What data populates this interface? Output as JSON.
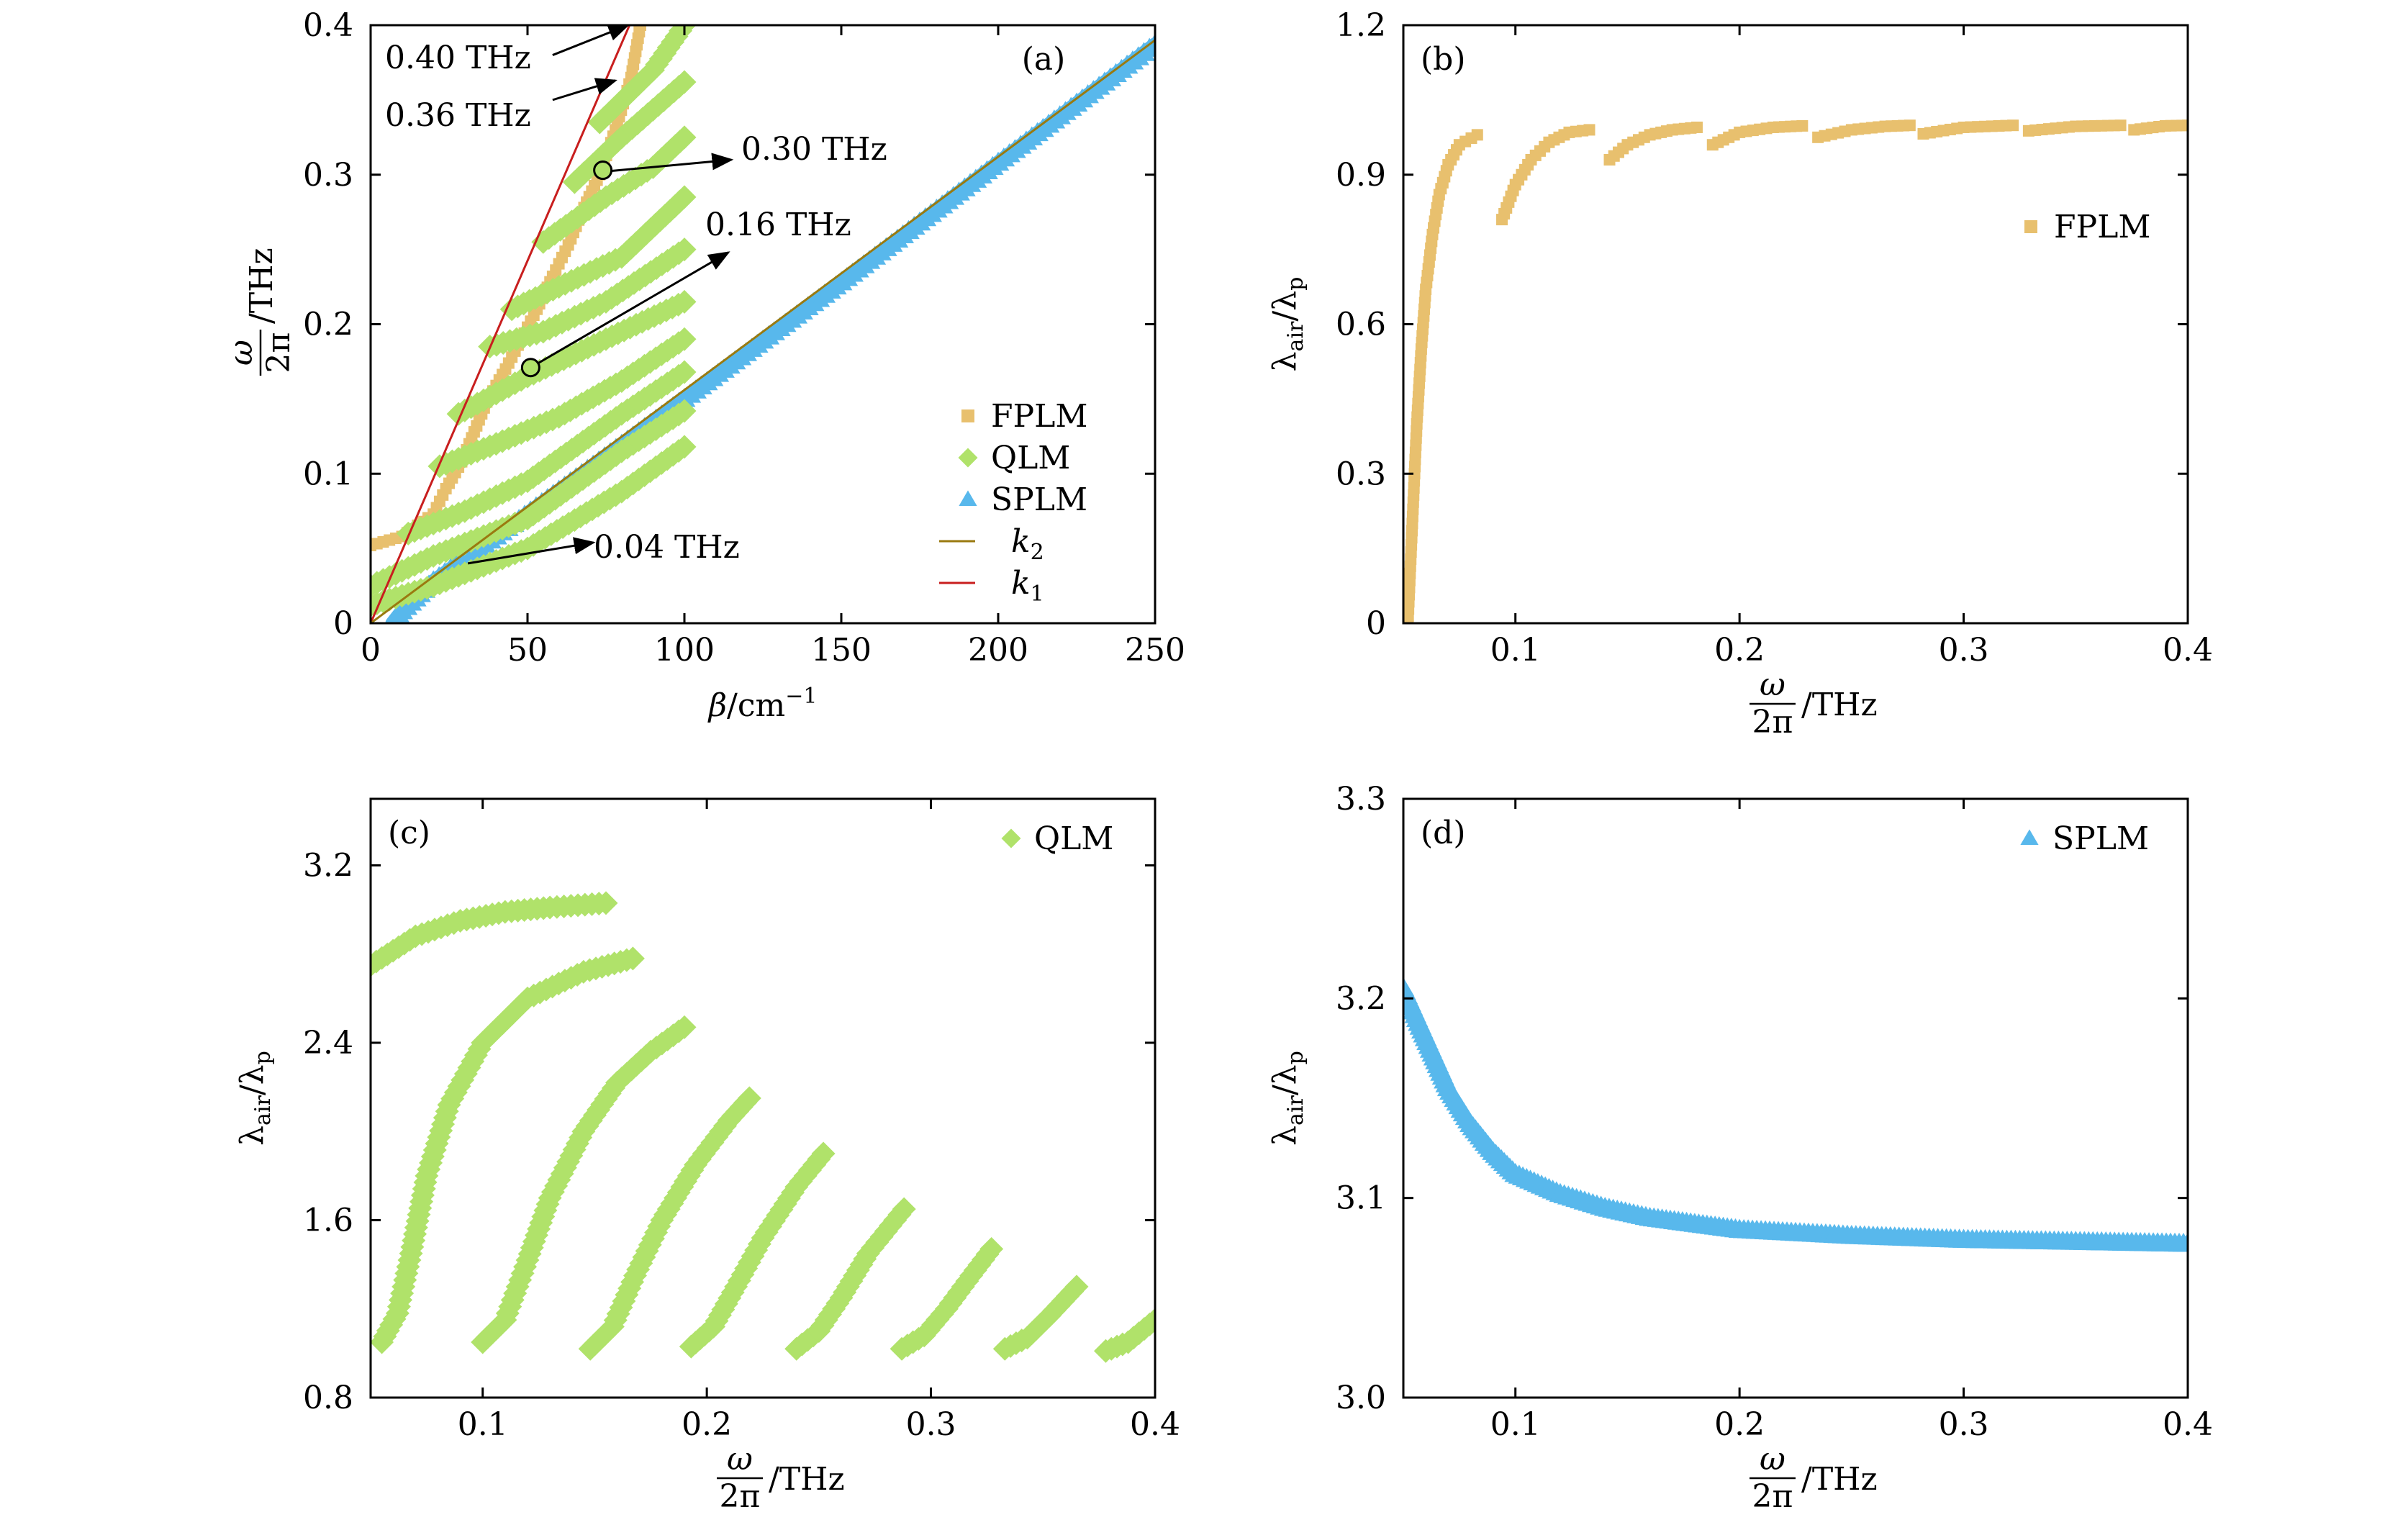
{
  "colors": {
    "fplm": "#E8C06E",
    "qlm": "#B0E26A",
    "splm": "#58B8EC",
    "k1": "#C81E1E",
    "k2": "#9A7A10",
    "marker_fill": "#B0E26A"
  },
  "chart_data": [
    {
      "panel": "(a)",
      "type": "scatter",
      "xlabel": "β/cm⁻¹",
      "ylabel": "ω/2π /THz",
      "xlabel_parts": {
        "beta": "β",
        "unit": "/cm",
        "exp": "−1"
      },
      "ylabel_parts": {
        "num": "ω",
        "den": "2π",
        "unit": "/THz"
      },
      "xlim": [
        0,
        250
      ],
      "ylim": [
        0,
        0.4
      ],
      "xticks": [
        0,
        50,
        100,
        150,
        200,
        250
      ],
      "xtick_labels": [
        "0",
        "50",
        "100",
        "150",
        "200",
        "250"
      ],
      "yticks": [
        0,
        0.1,
        0.2,
        0.3,
        0.4
      ],
      "ytick_labels": [
        "0",
        "0.1",
        "0.2",
        "0.3",
        "0.4"
      ],
      "legend": {
        "position": "right",
        "entries": [
          {
            "name": "FPLM",
            "marker": "square"
          },
          {
            "name": "QLM",
            "marker": "diamond"
          },
          {
            "name": "SPLM",
            "marker": "triangle"
          },
          {
            "name": "k",
            "sub": "2",
            "marker": "line"
          },
          {
            "name": "k",
            "sub": "1",
            "marker": "line"
          }
        ]
      },
      "lines": [
        {
          "name": "k1",
          "points": [
            [
              0,
              0
            ],
            [
              82.5,
              0.4
            ]
          ]
        },
        {
          "name": "k2",
          "points": [
            [
              0,
              0
            ],
            [
              250,
              0.39
            ]
          ]
        }
      ],
      "series": [
        {
          "name": "SPLM",
          "points": [
            [
              7,
              0
            ],
            [
              10,
              0.008
            ],
            [
              20,
              0.028
            ],
            [
              40,
              0.058
            ],
            [
              100,
              0.15
            ],
            [
              150,
              0.228
            ],
            [
              200,
              0.308
            ],
            [
              250,
              0.387
            ]
          ]
        },
        {
          "name": "FPLM",
          "points": [
            [
              0,
              0.052
            ],
            [
              10,
              0.058
            ],
            [
              20,
              0.073
            ],
            [
              24,
              0.09
            ],
            [
              29,
              0.108
            ],
            [
              33,
              0.128
            ],
            [
              37,
              0.148
            ],
            [
              43,
              0.17
            ],
            [
              48,
              0.19
            ],
            [
              53,
              0.21
            ],
            [
              58,
              0.232
            ],
            [
              63,
              0.253
            ],
            [
              68,
              0.278
            ],
            [
              73,
              0.3
            ],
            [
              78,
              0.33
            ],
            [
              83,
              0.365
            ],
            [
              86,
              0.4
            ]
          ]
        },
        {
          "name": "QLM-1",
          "points": [
            [
              0,
              0.012
            ],
            [
              20,
              0.025
            ],
            [
              50,
              0.05
            ],
            [
              80,
              0.088
            ],
            [
              100,
              0.118
            ]
          ]
        },
        {
          "name": "QLM-2",
          "points": [
            [
              0,
              0.025
            ],
            [
              20,
              0.045
            ],
            [
              50,
              0.07
            ],
            [
              80,
              0.115
            ],
            [
              100,
              0.142
            ]
          ]
        },
        {
          "name": "QLM-3",
          "points": [
            [
              12,
              0.06
            ],
            [
              30,
              0.075
            ],
            [
              50,
              0.095
            ],
            [
              80,
              0.14
            ],
            [
              100,
              0.168
            ]
          ]
        },
        {
          "name": "QLM-4",
          "points": [
            [
              22,
              0.105
            ],
            [
              40,
              0.12
            ],
            [
              60,
              0.138
            ],
            [
              80,
              0.162
            ],
            [
              100,
              0.19
            ]
          ]
        },
        {
          "name": "QLM-5",
          "points": [
            [
              28,
              0.14
            ],
            [
              50,
              0.165
            ],
            [
              75,
              0.19
            ],
            [
              100,
              0.215
            ]
          ]
        },
        {
          "name": "QLM-6",
          "points": [
            [
              38,
              0.185
            ],
            [
              55,
              0.195
            ],
            [
              75,
              0.215
            ],
            [
              100,
              0.25
            ]
          ]
        },
        {
          "name": "QLM-7",
          "points": [
            [
              45,
              0.21
            ],
            [
              60,
              0.225
            ],
            [
              80,
              0.245
            ],
            [
              100,
              0.285
            ]
          ]
        },
        {
          "name": "QLM-8",
          "points": [
            [
              55,
              0.255
            ],
            [
              75,
              0.285
            ],
            [
              90,
              0.305
            ],
            [
              100,
              0.325
            ]
          ]
        },
        {
          "name": "QLM-9",
          "points": [
            [
              65,
              0.295
            ],
            [
              80,
              0.325
            ],
            [
              100,
              0.362
            ]
          ]
        },
        {
          "name": "QLM-10",
          "points": [
            [
              73,
              0.335
            ],
            [
              90,
              0.37
            ],
            [
              100,
              0.4
            ]
          ]
        }
      ],
      "annotations": [
        {
          "text": "0.40 THz",
          "arrow_from": [
            58,
            0.38
          ],
          "arrow_to": [
            82,
            0.4
          ]
        },
        {
          "text": "0.36 THz",
          "arrow_from": [
            58,
            0.35
          ],
          "arrow_to": [
            78,
            0.363
          ]
        },
        {
          "text": "0.30 THz",
          "arrow_from": [
            74,
            0.302
          ],
          "arrow_to": [
            115,
            0.31
          ]
        },
        {
          "text": "0.16 THz",
          "arrow_from": [
            51,
            0.171
          ],
          "arrow_to": [
            114,
            0.248
          ]
        },
        {
          "text": "0.04 THz",
          "arrow_from": [
            31,
            0.04
          ],
          "arrow_to": [
            71,
            0.054
          ]
        }
      ],
      "circles": [
        [
          74,
          0.303
        ],
        [
          51,
          0.171
        ]
      ]
    },
    {
      "panel": "(b)",
      "type": "scatter",
      "xlabel": "ω/2π /THz",
      "ylabel": "λair/λp",
      "xlim": [
        0.05,
        0.4
      ],
      "ylim": [
        0,
        1.2
      ],
      "xticks": [
        0.1,
        0.2,
        0.3,
        0.4
      ],
      "xtick_labels": [
        "0.1",
        "0.2",
        "0.3",
        "0.4"
      ],
      "yticks": [
        0,
        0.3,
        0.6,
        0.9,
        1.2
      ],
      "ytick_labels": [
        "0",
        "0.3",
        "0.6",
        "0.9",
        "1.2"
      ],
      "legend": {
        "position": "right",
        "entries": [
          {
            "name": "FPLM",
            "marker": "square"
          }
        ]
      },
      "series": [
        {
          "name": "FPLM-1",
          "points": [
            [
              0.052,
              0.0
            ],
            [
              0.054,
              0.2
            ],
            [
              0.056,
              0.4
            ],
            [
              0.058,
              0.55
            ],
            [
              0.06,
              0.67
            ],
            [
              0.063,
              0.78
            ],
            [
              0.066,
              0.86
            ],
            [
              0.07,
              0.92
            ],
            [
              0.075,
              0.96
            ],
            [
              0.083,
              0.98
            ]
          ]
        },
        {
          "name": "FPLM-2",
          "points": [
            [
              0.094,
              0.81
            ],
            [
              0.1,
              0.88
            ],
            [
              0.107,
              0.93
            ],
            [
              0.115,
              0.965
            ],
            [
              0.124,
              0.985
            ],
            [
              0.133,
              0.99
            ]
          ]
        },
        {
          "name": "FPLM-3",
          "points": [
            [
              0.142,
              0.93
            ],
            [
              0.15,
              0.96
            ],
            [
              0.16,
              0.98
            ],
            [
              0.17,
              0.99
            ],
            [
              0.181,
              0.995
            ]
          ]
        },
        {
          "name": "FPLM-4",
          "points": [
            [
              0.188,
              0.96
            ],
            [
              0.2,
              0.985
            ],
            [
              0.215,
              0.995
            ],
            [
              0.228,
              0.998
            ]
          ]
        },
        {
          "name": "FPLM-5",
          "points": [
            [
              0.235,
              0.975
            ],
            [
              0.25,
              0.99
            ],
            [
              0.265,
              0.997
            ],
            [
              0.276,
              0.999
            ]
          ]
        },
        {
          "name": "FPLM-6",
          "points": [
            [
              0.282,
              0.982
            ],
            [
              0.3,
              0.995
            ],
            [
              0.322,
              0.999
            ]
          ]
        },
        {
          "name": "FPLM-7",
          "points": [
            [
              0.329,
              0.988
            ],
            [
              0.35,
              0.997
            ],
            [
              0.37,
              0.999
            ]
          ]
        },
        {
          "name": "FPLM-8",
          "points": [
            [
              0.376,
              0.99
            ],
            [
              0.39,
              0.998
            ],
            [
              0.4,
              0.999
            ]
          ]
        }
      ]
    },
    {
      "panel": "(c)",
      "type": "scatter",
      "xlabel": "ω/2π /THz",
      "ylabel": "λair/λp",
      "xlim": [
        0.05,
        0.4
      ],
      "ylim": [
        0.8,
        3.5
      ],
      "xticks": [
        0.1,
        0.2,
        0.3,
        0.4
      ],
      "xtick_labels": [
        "0.1",
        "0.2",
        "0.3",
        "0.4"
      ],
      "yticks": [
        0.8,
        1.6,
        2.4,
        3.2
      ],
      "ytick_labels": [
        "0.8",
        "1.6",
        "2.4",
        "3.2"
      ],
      "legend": {
        "position": "top-right",
        "entries": [
          {
            "name": "QLM",
            "marker": "diamond"
          }
        ]
      },
      "series": [
        {
          "name": "QLM-1",
          "points": [
            [
              0.05,
              2.75
            ],
            [
              0.07,
              2.88
            ],
            [
              0.09,
              2.95
            ],
            [
              0.11,
              2.99
            ],
            [
              0.13,
              3.01
            ],
            [
              0.155,
              3.03
            ]
          ]
        },
        {
          "name": "QLM-2",
          "points": [
            [
              0.055,
              1.05
            ],
            [
              0.062,
              1.18
            ],
            [
              0.068,
              1.45
            ],
            [
              0.075,
              1.8
            ],
            [
              0.085,
              2.12
            ],
            [
              0.1,
              2.4
            ],
            [
              0.12,
              2.6
            ],
            [
              0.145,
              2.72
            ],
            [
              0.167,
              2.78
            ]
          ]
        },
        {
          "name": "QLM-3",
          "points": [
            [
              0.1,
              1.05
            ],
            [
              0.11,
              1.15
            ],
            [
              0.12,
              1.42
            ],
            [
              0.13,
              1.7
            ],
            [
              0.145,
              2.0
            ],
            [
              0.16,
              2.22
            ],
            [
              0.175,
              2.36
            ],
            [
              0.19,
              2.47
            ]
          ]
        },
        {
          "name": "QLM-4",
          "points": [
            [
              0.148,
              1.02
            ],
            [
              0.158,
              1.12
            ],
            [
              0.168,
              1.35
            ],
            [
              0.18,
              1.6
            ],
            [
              0.195,
              1.85
            ],
            [
              0.21,
              2.05
            ],
            [
              0.219,
              2.15
            ]
          ]
        },
        {
          "name": "QLM-5",
          "points": [
            [
              0.193,
              1.03
            ],
            [
              0.203,
              1.12
            ],
            [
              0.213,
              1.3
            ],
            [
              0.225,
              1.52
            ],
            [
              0.24,
              1.75
            ],
            [
              0.252,
              1.9
            ]
          ]
        },
        {
          "name": "QLM-6",
          "points": [
            [
              0.24,
              1.02
            ],
            [
              0.25,
              1.1
            ],
            [
              0.26,
              1.25
            ],
            [
              0.272,
              1.45
            ],
            [
              0.288,
              1.65
            ]
          ]
        },
        {
          "name": "QLM-7",
          "points": [
            [
              0.287,
              1.02
            ],
            [
              0.297,
              1.08
            ],
            [
              0.307,
              1.2
            ],
            [
              0.318,
              1.35
            ],
            [
              0.327,
              1.47
            ]
          ]
        },
        {
          "name": "QLM-8",
          "points": [
            [
              0.333,
              1.02
            ],
            [
              0.343,
              1.07
            ],
            [
              0.353,
              1.17
            ],
            [
              0.365,
              1.3
            ]
          ]
        },
        {
          "name": "QLM-9",
          "points": [
            [
              0.378,
              1.01
            ],
            [
              0.388,
              1.05
            ],
            [
              0.4,
              1.15
            ]
          ]
        }
      ]
    },
    {
      "panel": "(d)",
      "type": "scatter",
      "xlabel": "ω/2π /THz",
      "ylabel": "λair/λp",
      "xlim": [
        0.05,
        0.4
      ],
      "ylim": [
        3.0,
        3.3
      ],
      "xticks": [
        0.1,
        0.2,
        0.3,
        0.4
      ],
      "xtick_labels": [
        "0.1",
        "0.2",
        "0.3",
        "0.4"
      ],
      "yticks": [
        3.0,
        3.1,
        3.2,
        3.3
      ],
      "ytick_labels": [
        "3.0",
        "3.1",
        "3.2",
        "3.3"
      ],
      "legend": {
        "position": "top-right",
        "entries": [
          {
            "name": "SPLM",
            "marker": "triangle"
          }
        ]
      },
      "series": [
        {
          "name": "SPLM",
          "points": [
            [
              0.05,
              3.205
            ],
            [
              0.06,
              3.18
            ],
            [
              0.07,
              3.155
            ],
            [
              0.08,
              3.137
            ],
            [
              0.09,
              3.123
            ],
            [
              0.1,
              3.112
            ],
            [
              0.12,
              3.102
            ],
            [
              0.14,
              3.095
            ],
            [
              0.16,
              3.09
            ],
            [
              0.18,
              3.087
            ],
            [
              0.2,
              3.084
            ],
            [
              0.25,
              3.081
            ],
            [
              0.3,
              3.079
            ],
            [
              0.35,
              3.078
            ],
            [
              0.4,
              3.077
            ]
          ]
        }
      ]
    }
  ]
}
